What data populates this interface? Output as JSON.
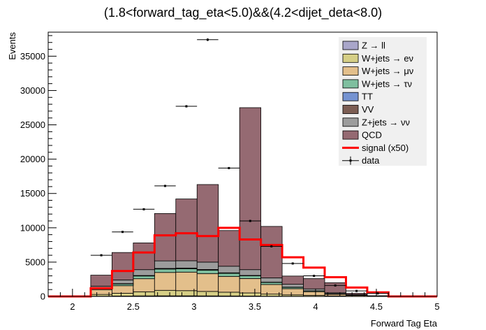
{
  "chart_data": {
    "type": "bar",
    "stacked": true,
    "title": "(1.8<forward_tag_eta<5.0)&&(4.2<dijet_deta<8.0)",
    "xlabel": "Forward Tag Eta",
    "ylabel": "Events",
    "xlim": [
      1.8,
      5.0
    ],
    "ylim": [
      0,
      38500
    ],
    "x_ticks": [
      "2",
      "2.5",
      "3",
      "3.5",
      "4",
      "4.5",
      "5"
    ],
    "y_ticks": [
      "0",
      "5000",
      "10000",
      "15000",
      "20000",
      "25000",
      "30000",
      "35000"
    ],
    "legend_position": "top-right",
    "bin_edges": [
      1.8,
      1.975,
      2.15,
      2.325,
      2.5,
      2.675,
      2.85,
      3.025,
      3.2,
      3.375,
      3.55,
      3.725,
      3.9,
      4.075,
      4.25,
      4.425,
      4.6,
      4.775,
      5.0
    ],
    "series": [
      {
        "name": "Z → ll",
        "color": "#a9a6c9",
        "values": [
          0,
          0,
          40,
          60,
          80,
          90,
          90,
          80,
          70,
          60,
          40,
          30,
          20,
          10,
          5,
          0,
          0,
          0
        ]
      },
      {
        "name": "W+jets → eν",
        "color": "#d6cf86",
        "values": [
          0,
          0,
          250,
          400,
          600,
          800,
          750,
          650,
          550,
          450,
          300,
          200,
          120,
          60,
          25,
          10,
          0,
          0
        ]
      },
      {
        "name": "W+jets → μν",
        "color": "#e3bf8b",
        "values": [
          0,
          0,
          700,
          1100,
          1900,
          2600,
          2700,
          2600,
          2300,
          2100,
          1400,
          900,
          550,
          250,
          130,
          40,
          0,
          0
        ]
      },
      {
        "name": "W+jets → τν",
        "color": "#7fbf9f",
        "values": [
          0,
          0,
          150,
          250,
          400,
          500,
          500,
          500,
          450,
          400,
          300,
          200,
          120,
          70,
          40,
          10,
          0,
          0
        ]
      },
      {
        "name": "TT",
        "color": "#7593d1",
        "values": [
          0,
          0,
          10,
          20,
          30,
          40,
          40,
          40,
          30,
          20,
          15,
          10,
          5,
          0,
          0,
          0,
          0,
          0
        ]
      },
      {
        "name": "VV",
        "color": "#7c5d53",
        "values": [
          0,
          0,
          20,
          30,
          40,
          50,
          50,
          50,
          40,
          30,
          25,
          15,
          10,
          5,
          0,
          0,
          0,
          0
        ]
      },
      {
        "name": "Z+jets → νν",
        "color": "#9c9c9c",
        "values": [
          0,
          0,
          330,
          540,
          850,
          1100,
          1070,
          1080,
          960,
          840,
          620,
          415,
          275,
          135,
          70,
          25,
          0,
          0
        ]
      },
      {
        "name": "QCD",
        "color": "#956a72",
        "values": [
          0,
          0,
          1600,
          4000,
          3900,
          6900,
          9000,
          11300,
          5200,
          23600,
          7500,
          1200,
          1500,
          1470,
          190,
          15,
          0,
          0
        ]
      }
    ],
    "signal": {
      "name": "signal (x50)",
      "color": "#ff0000",
      "values": [
        0,
        0,
        1200,
        3700,
        6400,
        8900,
        9200,
        8800,
        10000,
        8300,
        7500,
        5700,
        4200,
        2800,
        1300,
        600,
        0,
        0
      ]
    },
    "data": {
      "name": "data",
      "x": [
        2.237,
        2.412,
        2.587,
        2.762,
        2.937,
        3.112,
        3.287,
        3.462,
        3.637,
        3.812,
        3.987,
        4.162,
        4.337,
        4.512
      ],
      "y": [
        6000,
        9400,
        12700,
        16100,
        27700,
        37400,
        18700,
        11000,
        7300,
        4800,
        3000,
        1600,
        800,
        450
      ]
    }
  }
}
